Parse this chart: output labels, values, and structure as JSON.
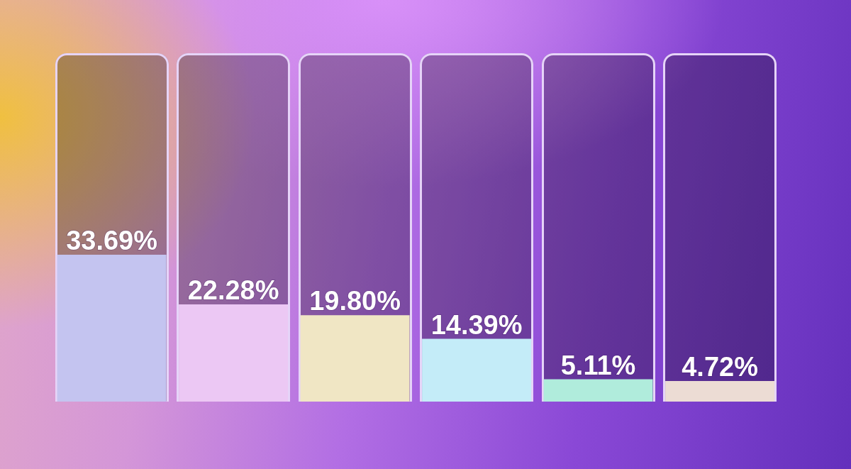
{
  "chart_data": {
    "type": "bar",
    "categories": [
      null,
      null,
      null,
      null,
      null,
      null
    ],
    "values": [
      33.69,
      22.28,
      19.8,
      14.39,
      5.11,
      4.72
    ],
    "colors": [
      "#c4c4f0",
      "#ecc8f4",
      "#f0e6c4",
      "#c4ecf8",
      "#b0ecdc",
      "#ecdcd4"
    ],
    "value_labels": [
      "33.69%",
      "22.28%",
      "19.80%",
      "14.39%",
      "5.11%",
      "4.72%"
    ],
    "tick_labels": false
  }
}
